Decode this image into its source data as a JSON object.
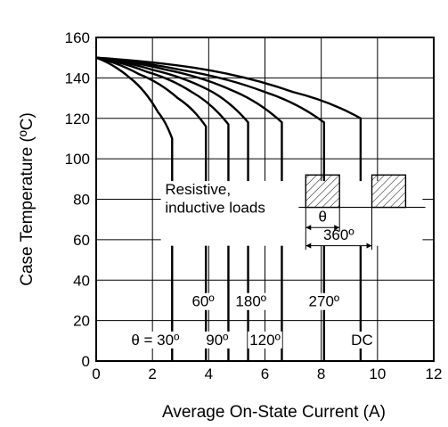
{
  "chart_data": {
    "type": "line",
    "xlabel": "Average On-State Current  (A)",
    "ylabel": "Case Temperature  (ºC)",
    "xlim": [
      0,
      12
    ],
    "ylim": [
      0,
      160
    ],
    "x_ticks": [
      "0",
      "2",
      "4",
      "6",
      "8",
      "10",
      "12"
    ],
    "y_ticks": [
      "0",
      "20",
      "40",
      "60",
      "80",
      "100",
      "120",
      "140",
      "160"
    ],
    "grid": true,
    "series": [
      {
        "name": "θ = 30º",
        "points": [
          [
            0,
            150
          ],
          [
            1.2,
            140
          ],
          [
            2.2,
            123
          ],
          [
            2.7,
            110
          ]
        ],
        "drop_to": 0
      },
      {
        "name": "60º",
        "points": [
          [
            0,
            150
          ],
          [
            1.5,
            142
          ],
          [
            2.9,
            130
          ],
          [
            3.9,
            116
          ]
        ],
        "drop_to": 0
      },
      {
        "name": "90º",
        "points": [
          [
            0,
            150
          ],
          [
            1.8,
            143
          ],
          [
            3.4,
            133
          ],
          [
            4.7,
            117
          ]
        ],
        "drop_to": 0
      },
      {
        "name": "180º",
        "points": [
          [
            0,
            150
          ],
          [
            2.0,
            144
          ],
          [
            4.0,
            134
          ],
          [
            5.4,
            118
          ]
        ],
        "drop_to": 0
      },
      {
        "name": "120º",
        "points": [
          [
            0,
            150
          ],
          [
            2.5,
            144
          ],
          [
            4.8,
            134
          ],
          [
            6.6,
            118
          ]
        ],
        "drop_to": 0
      },
      {
        "name": "270º",
        "points": [
          [
            0,
            150
          ],
          [
            3.0,
            144
          ],
          [
            6.0,
            133
          ],
          [
            8.1,
            118
          ]
        ],
        "drop_to": 0
      },
      {
        "name": "DC",
        "points": [
          [
            0,
            150
          ],
          [
            3.5,
            145
          ],
          [
            7.0,
            133
          ],
          [
            9.4,
            120
          ]
        ],
        "drop_to": 0
      }
    ],
    "annotations": {
      "loads_line1": "Resistive,",
      "loads_line2": "inductive loads",
      "theta_symbol": "θ",
      "period_label": "360º",
      "labels": [
        {
          "text": "θ = 30º",
          "x": 2.1,
          "y": 8
        },
        {
          "text": "60º",
          "x": 3.8,
          "y": 27
        },
        {
          "text": "90º",
          "x": 4.3,
          "y": 8
        },
        {
          "text": "180º",
          "x": 5.5,
          "y": 27
        },
        {
          "text": "120º",
          "x": 6.0,
          "y": 8
        },
        {
          "text": "270º",
          "x": 8.1,
          "y": 27
        },
        {
          "text": "DC",
          "x": 9.45,
          "y": 8
        }
      ]
    }
  }
}
